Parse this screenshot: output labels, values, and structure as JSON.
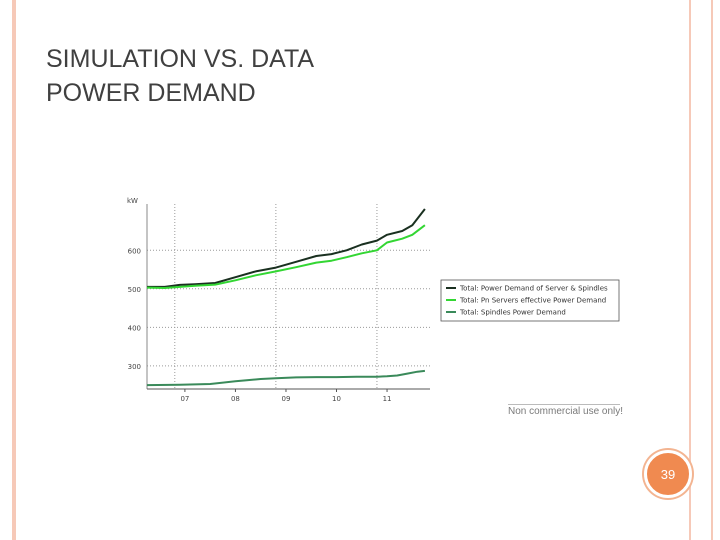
{
  "slide": {
    "title_line1": "SIMULATION VS. DATA",
    "title_line2": "POWER DEMAND",
    "page_number": "39",
    "watermark": "Non commercial use only!"
  },
  "colors": {
    "accent": "#f08a50",
    "border": "#f6c9b8",
    "series_total": "#1a3020",
    "series_pn": "#33d633",
    "series_spindles": "#3a8a5a"
  },
  "chart_data": {
    "type": "line",
    "title": "",
    "xlabel": "",
    "ylabel": "kW",
    "ylim": [
      240,
      720
    ],
    "yticks": [
      300,
      400,
      500,
      600
    ],
    "ytick_labels": [
      "300",
      "400",
      "500",
      "600"
    ],
    "x_range": [
      2006.25,
      2011.85
    ],
    "xticks": [
      2007,
      2008,
      2009,
      2010,
      2011
    ],
    "xtick_labels": [
      "07",
      "08",
      "09",
      "10",
      "11"
    ],
    "vertical_gridlines": [
      2006.8,
      2008.8,
      2010.8
    ],
    "legend": "right",
    "series": [
      {
        "name": "Total: Power Demand of Server & Spindles",
        "color": "#1a3020",
        "x": [
          2006.25,
          2006.6,
          2006.9,
          2007.2,
          2007.6,
          2008.0,
          2008.4,
          2008.8,
          2009.2,
          2009.6,
          2009.9,
          2010.2,
          2010.5,
          2010.8,
          2011.0,
          2011.3,
          2011.5,
          2011.75
        ],
        "y": [
          505,
          505,
          510,
          512,
          515,
          530,
          545,
          555,
          570,
          585,
          590,
          600,
          615,
          625,
          640,
          650,
          665,
          707
        ]
      },
      {
        "name": "Total: Pn Servers effective Power Demand",
        "color": "#33d633",
        "x": [
          2006.25,
          2006.6,
          2006.9,
          2007.2,
          2007.6,
          2008.0,
          2008.4,
          2008.8,
          2009.2,
          2009.6,
          2009.9,
          2010.2,
          2010.5,
          2010.8,
          2011.0,
          2011.3,
          2011.5,
          2011.75
        ],
        "y": [
          503,
          502,
          505,
          508,
          511,
          522,
          535,
          545,
          556,
          568,
          573,
          582,
          592,
          600,
          620,
          630,
          640,
          665
        ]
      },
      {
        "name": "Total: Spindles Power Demand",
        "color": "#3a8a5a",
        "x": [
          2006.25,
          2006.9,
          2007.5,
          2008.0,
          2008.5,
          2008.8,
          2009.2,
          2009.6,
          2010.0,
          2010.4,
          2010.8,
          2011.0,
          2011.2,
          2011.4,
          2011.6,
          2011.75
        ],
        "y": [
          250,
          251,
          253,
          260,
          266,
          268,
          270,
          271,
          271,
          272,
          272,
          273,
          275,
          280,
          285,
          287
        ]
      }
    ]
  }
}
